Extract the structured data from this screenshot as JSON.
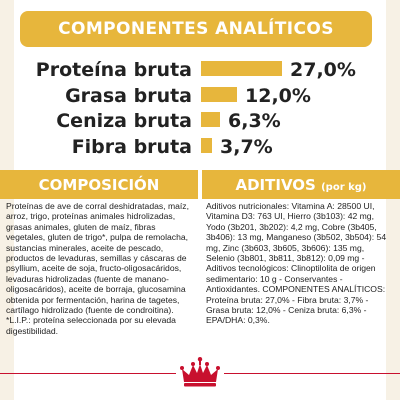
{
  "header": {
    "title": "COMPONENTES ANALÍTICOS"
  },
  "analytics": [
    {
      "label": "Proteína bruta",
      "value": "27,0%",
      "percent": 27.0
    },
    {
      "label": "Grasa bruta",
      "value": "12,0%",
      "percent": 12.0
    },
    {
      "label": "Ceniza bruta",
      "value": "6,3%",
      "percent": 6.3
    },
    {
      "label": "Fibra bruta",
      "value": "3,7%",
      "percent": 3.7
    }
  ],
  "composicion": {
    "title": "COMPOSICIÓN",
    "text": "Proteínas de ave de corral deshidratadas, maíz, arroz, trigo, proteínas animales hidrolizadas, grasas animales, gluten de maíz, fibras vegetales, gluten de trigo*, pulpa de remolacha, sustancias minerales, aceite de pescado, productos de levaduras, semillas y cáscaras de psyllium, aceite de soja, fructo-oligosacáridos, levaduras hidrolizadas (fuente de manano-oligosacáridos), aceite de borraja, glucosamina obtenida por fermentación, harina de tagetes, cartílago hidrolizado (fuente de condroitina). *L.I.P.: proteína seleccionada por su elevada digestibilidad."
  },
  "aditivos": {
    "title": "ADITIVOS",
    "subtitle": "(por kg)",
    "text": "Aditivos nutricionales: Vitamina A: 28500 UI, Vitamina D3: 763 UI, Hierro (3b103): 42 mg, Yodo (3b201, 3b202): 4,2 mg, Cobre (3b405, 3b406): 13 mg, Manganeso (3b502, 3b504): 54 mg, Zinc (3b603, 3b605, 3b606): 135 mg, Selenio (3b801, 3b811, 3b812): 0,09 mg - Aditivos tecnológicos: Clinoptilolita de origen sedimentario: 10 g - Conservantes - Antioxidantes. COMPONENTES ANALÍTICOS: Proteína bruta: 27,0% - Fibra bruta: 3,7% - Grasa bruta: 12,0% - Ceniza bruta: 6,3% - EPA/DHA: 0,3%."
  },
  "footer": {
    "logo": "crown-icon"
  },
  "colors": {
    "accent": "#e7b63c",
    "brand_red": "#c8102e",
    "side_strip": "#f7f1e5"
  }
}
